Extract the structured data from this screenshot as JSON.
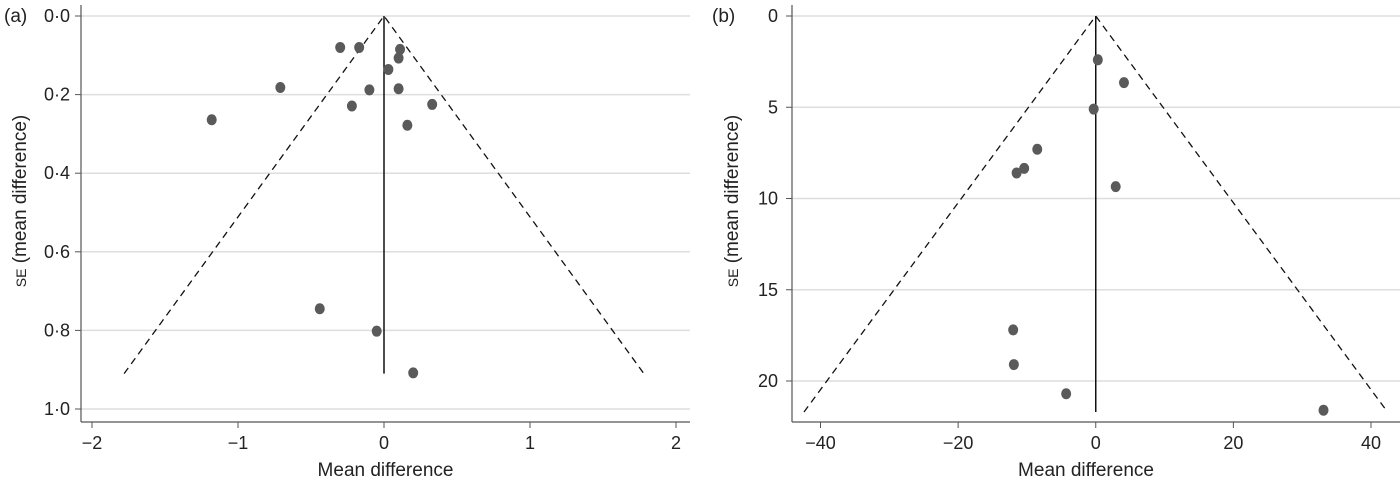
{
  "chart_data": [
    {
      "type": "scatter",
      "subtype": "funnel plot",
      "panel_label": "(a)",
      "xlabel": "Mean difference",
      "ylabel_prefix": "SE",
      "ylabel_rest": " (mean difference)",
      "xlim": [
        -2.05,
        2.25
      ],
      "ylim": [
        1.0,
        0.0
      ],
      "y_reversed": true,
      "xticks": [
        -2,
        -1,
        0,
        1,
        2
      ],
      "xtick_labels": [
        "−2",
        "−1",
        "0",
        "1",
        "2"
      ],
      "yticks": [
        0,
        0.2,
        0.4,
        0.6,
        0.8,
        1.0
      ],
      "ytick_labels": [
        "0·0",
        "0·2",
        "0·4",
        "0·6",
        "0·8",
        "1·0"
      ],
      "grid": true,
      "funnel": {
        "center": 0,
        "max_se": 0.91,
        "half_width_at_max": 1.78
      },
      "points": [
        {
          "x": -0.3,
          "y": 0.08
        },
        {
          "x": -0.17,
          "y": 0.08
        },
        {
          "x": 0.11,
          "y": 0.085
        },
        {
          "x": 0.1,
          "y": 0.107
        },
        {
          "x": 0.03,
          "y": 0.136
        },
        {
          "x": -0.71,
          "y": 0.182
        },
        {
          "x": -0.1,
          "y": 0.188
        },
        {
          "x": 0.1,
          "y": 0.185
        },
        {
          "x": -0.22,
          "y": 0.229
        },
        {
          "x": 0.33,
          "y": 0.225
        },
        {
          "x": -1.18,
          "y": 0.264
        },
        {
          "x": 0.16,
          "y": 0.278
        },
        {
          "x": -0.44,
          "y": 0.745
        },
        {
          "x": -0.05,
          "y": 0.802
        },
        {
          "x": 0.2,
          "y": 0.908
        }
      ],
      "colors": {
        "point": "#5a5a5a",
        "grid": "#dedede",
        "axis": "#555555",
        "line": "#111111"
      }
    },
    {
      "type": "scatter",
      "subtype": "funnel plot",
      "panel_label": "(b)",
      "xlabel": "Mean difference",
      "ylabel_prefix": "SE",
      "ylabel_rest": " (mean difference)",
      "xlim": [
        -44,
        44
      ],
      "ylim": [
        22.2,
        0
      ],
      "y_reversed": true,
      "xticks": [
        -40,
        -20,
        0,
        20,
        40
      ],
      "xtick_labels": [
        "−40",
        "−20",
        "0",
        "20",
        "40"
      ],
      "yticks": [
        0,
        5,
        10,
        15,
        20
      ],
      "ytick_labels": [
        "0",
        "5",
        "10",
        "15",
        "20"
      ],
      "grid": true,
      "funnel": {
        "center": 0,
        "max_se": 21.7,
        "half_width_at_max": 42.4
      },
      "points": [
        {
          "x": 0.3,
          "y": 2.4
        },
        {
          "x": 4.1,
          "y": 3.65
        },
        {
          "x": -0.3,
          "y": 5.1
        },
        {
          "x": -8.5,
          "y": 7.3
        },
        {
          "x": -10.4,
          "y": 8.35
        },
        {
          "x": -11.5,
          "y": 8.6
        },
        {
          "x": 2.9,
          "y": 9.35
        },
        {
          "x": -12.0,
          "y": 17.2
        },
        {
          "x": -11.9,
          "y": 19.1
        },
        {
          "x": -4.3,
          "y": 20.7
        },
        {
          "x": 33.1,
          "y": 21.6
        }
      ],
      "colors": {
        "point": "#5a5a5a",
        "grid": "#dedede",
        "axis": "#555555",
        "line": "#111111"
      }
    }
  ]
}
